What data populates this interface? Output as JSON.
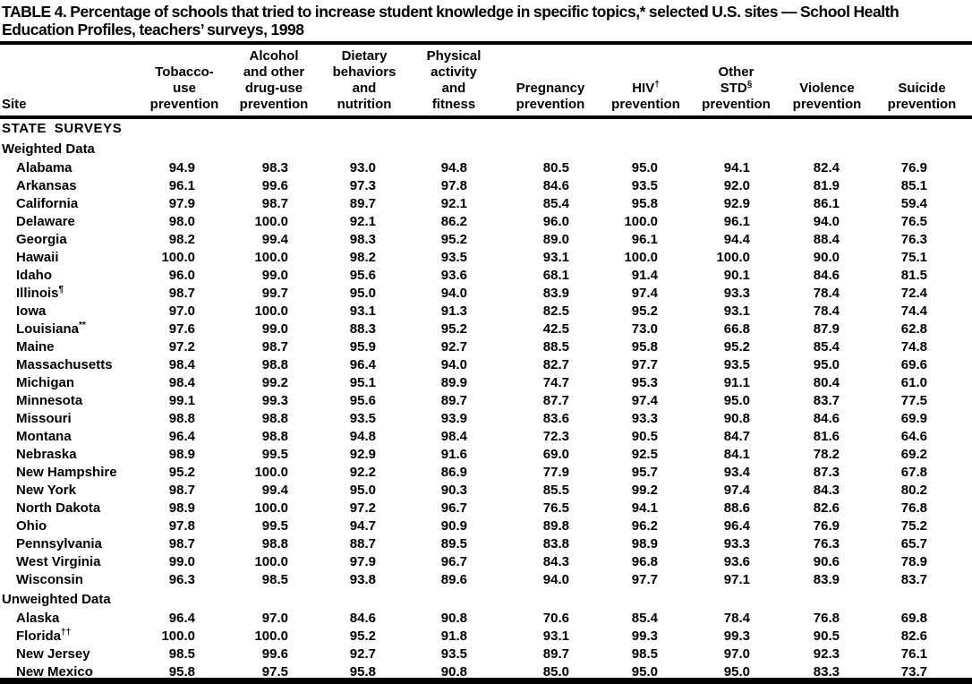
{
  "page": {
    "title_lines": [
      "TABLE 4. Percentage of schools that tried to  increase student knowledge in specific topics,* selected U.S. sites — School Health",
      "Education Profiles, teachers’ surveys, 1998"
    ]
  },
  "table": {
    "site_column_header": "Site",
    "columns": [
      {
        "id": "tobacco",
        "lines": [
          {
            "text": "Tobacco-"
          },
          {
            "text": "use"
          },
          {
            "text": "prevention"
          }
        ]
      },
      {
        "id": "alcohol",
        "lines": [
          {
            "text": "Alcohol"
          },
          {
            "text": "and other"
          },
          {
            "text": "drug-use"
          },
          {
            "text": "prevention"
          }
        ]
      },
      {
        "id": "dietary",
        "lines": [
          {
            "text": "Dietary"
          },
          {
            "text": "behaviors"
          },
          {
            "text": "and"
          },
          {
            "text": "nutrition"
          }
        ]
      },
      {
        "id": "physical",
        "lines": [
          {
            "text": "Physical"
          },
          {
            "text": "activity"
          },
          {
            "text": "and"
          },
          {
            "text": "fitness"
          }
        ]
      },
      {
        "id": "pregnancy",
        "lines": [
          {
            "text": "Pregnancy"
          },
          {
            "text": "prevention"
          }
        ]
      },
      {
        "id": "hiv",
        "lines": [
          {
            "text": "HIV",
            "sup": "†"
          },
          {
            "text": "prevention"
          }
        ]
      },
      {
        "id": "std",
        "lines": [
          {
            "text": "Other"
          },
          {
            "text": "STD",
            "sup": "§"
          },
          {
            "text": "prevention"
          }
        ]
      },
      {
        "id": "violence",
        "lines": [
          {
            "text": "Violence"
          },
          {
            "text": "prevention"
          }
        ]
      },
      {
        "id": "suicide",
        "lines": [
          {
            "text": "Suicide"
          },
          {
            "text": "prevention"
          }
        ]
      }
    ],
    "body": [
      {
        "type": "section",
        "label": "STATE SURVEYS"
      },
      {
        "type": "subsection",
        "label": "Weighted Data"
      },
      {
        "type": "row",
        "site": "Alabama",
        "values": [
          "94.9",
          "98.3",
          "93.0",
          "94.8",
          "80.5",
          "95.0",
          "94.1",
          "82.4",
          "76.9"
        ]
      },
      {
        "type": "row",
        "site": "Arkansas",
        "values": [
          "96.1",
          "99.6",
          "97.3",
          "97.8",
          "84.6",
          "93.5",
          "92.0",
          "81.9",
          "85.1"
        ]
      },
      {
        "type": "row",
        "site": "California",
        "values": [
          "97.9",
          "98.7",
          "89.7",
          "92.1",
          "85.4",
          "95.8",
          "92.9",
          "86.1",
          "59.4"
        ]
      },
      {
        "type": "row",
        "site": "Delaware",
        "values": [
          "98.0",
          "100.0",
          "92.1",
          "86.2",
          "96.0",
          "100.0",
          "96.1",
          "94.0",
          "76.5"
        ]
      },
      {
        "type": "row",
        "site": "Georgia",
        "values": [
          "98.2",
          "99.4",
          "98.3",
          "95.2",
          "89.0",
          "96.1",
          "94.4",
          "88.4",
          "76.3"
        ]
      },
      {
        "type": "row",
        "site": "Hawaii",
        "values": [
          "100.0",
          "100.0",
          "98.2",
          "93.5",
          "93.1",
          "100.0",
          "100.0",
          "90.0",
          "75.1"
        ]
      },
      {
        "type": "row",
        "site": "Idaho",
        "values": [
          "96.0",
          "99.0",
          "95.6",
          "93.6",
          "68.1",
          "91.4",
          "90.1",
          "84.6",
          "81.5"
        ]
      },
      {
        "type": "row",
        "site": "Illinois",
        "site_sup": "¶",
        "values": [
          "98.7",
          "99.7",
          "95.0",
          "94.0",
          "83.9",
          "97.4",
          "93.3",
          "78.4",
          "72.4"
        ]
      },
      {
        "type": "row",
        "site": "Iowa",
        "values": [
          "97.0",
          "100.0",
          "93.1",
          "91.3",
          "82.5",
          "95.2",
          "93.1",
          "78.4",
          "74.4"
        ]
      },
      {
        "type": "row",
        "site": "Louisiana",
        "site_sup": "**",
        "values": [
          "97.6",
          "99.0",
          "88.3",
          "95.2",
          "42.5",
          "73.0",
          "66.8",
          "87.9",
          "62.8"
        ]
      },
      {
        "type": "row",
        "site": "Maine",
        "values": [
          "97.2",
          "98.7",
          "95.9",
          "92.7",
          "88.5",
          "95.8",
          "95.2",
          "85.4",
          "74.8"
        ]
      },
      {
        "type": "row",
        "site": "Massachusetts",
        "values": [
          "98.4",
          "98.8",
          "96.4",
          "94.0",
          "82.7",
          "97.7",
          "93.5",
          "95.0",
          "69.6"
        ]
      },
      {
        "type": "row",
        "site": "Michigan",
        "values": [
          "98.4",
          "99.2",
          "95.1",
          "89.9",
          "74.7",
          "95.3",
          "91.1",
          "80.4",
          "61.0"
        ]
      },
      {
        "type": "row",
        "site": "Minnesota",
        "values": [
          "99.1",
          "99.3",
          "95.6",
          "89.7",
          "87.7",
          "97.4",
          "95.0",
          "83.7",
          "77.5"
        ]
      },
      {
        "type": "row",
        "site": "Missouri",
        "values": [
          "98.8",
          "98.8",
          "93.5",
          "93.9",
          "83.6",
          "93.3",
          "90.8",
          "84.6",
          "69.9"
        ]
      },
      {
        "type": "row",
        "site": "Montana",
        "values": [
          "96.4",
          "98.8",
          "94.8",
          "98.4",
          "72.3",
          "90.5",
          "84.7",
          "81.6",
          "64.6"
        ]
      },
      {
        "type": "row",
        "site": "Nebraska",
        "values": [
          "98.9",
          "99.5",
          "92.9",
          "91.6",
          "69.0",
          "92.5",
          "84.1",
          "78.2",
          "69.2"
        ]
      },
      {
        "type": "row",
        "site": "New Hampshire",
        "values": [
          "95.2",
          "100.0",
          "92.2",
          "86.9",
          "77.9",
          "95.7",
          "93.4",
          "87.3",
          "67.8"
        ]
      },
      {
        "type": "row",
        "site": "New York",
        "values": [
          "98.7",
          "99.4",
          "95.0",
          "90.3",
          "85.5",
          "99.2",
          "97.4",
          "84.3",
          "80.2"
        ]
      },
      {
        "type": "row",
        "site": "North Dakota",
        "values": [
          "98.9",
          "100.0",
          "97.2",
          "96.7",
          "76.5",
          "94.1",
          "88.6",
          "82.6",
          "76.8"
        ]
      },
      {
        "type": "row",
        "site": "Ohio",
        "values": [
          "97.8",
          "99.5",
          "94.7",
          "90.9",
          "89.8",
          "96.2",
          "96.4",
          "76.9",
          "75.2"
        ]
      },
      {
        "type": "row",
        "site": "Pennsylvania",
        "values": [
          "98.7",
          "98.8",
          "88.7",
          "89.5",
          "83.8",
          "98.9",
          "93.3",
          "76.3",
          "65.7"
        ]
      },
      {
        "type": "row",
        "site": "West Virginia",
        "values": [
          "99.0",
          "100.0",
          "97.9",
          "96.7",
          "84.3",
          "96.8",
          "93.6",
          "90.6",
          "78.9"
        ]
      },
      {
        "type": "row",
        "site": "Wisconsin",
        "values": [
          "96.3",
          "98.5",
          "93.8",
          "89.6",
          "94.0",
          "97.7",
          "97.1",
          "83.9",
          "83.7"
        ]
      },
      {
        "type": "subsection",
        "label": "Unweighted Data"
      },
      {
        "type": "row",
        "site": "Alaska",
        "values": [
          "96.4",
          "97.0",
          "84.6",
          "90.8",
          "70.6",
          "85.4",
          "78.4",
          "76.8",
          "69.8"
        ]
      },
      {
        "type": "row",
        "site": "Florida",
        "site_sup": "††",
        "values": [
          "100.0",
          "100.0",
          "95.2",
          "91.8",
          "93.1",
          "99.3",
          "99.3",
          "90.5",
          "82.6"
        ]
      },
      {
        "type": "row",
        "site": "New Jersey",
        "values": [
          "98.5",
          "99.6",
          "92.7",
          "93.5",
          "89.7",
          "98.5",
          "97.0",
          "92.3",
          "76.1"
        ]
      },
      {
        "type": "row",
        "site": "New Mexico",
        "values": [
          "95.8",
          "97.5",
          "95.8",
          "90.8",
          "85.0",
          "95.0",
          "95.0",
          "83.3",
          "73.7"
        ]
      }
    ],
    "colors": {
      "text": "#000000",
      "background": "#ffffff",
      "rule": "#000000"
    }
  }
}
